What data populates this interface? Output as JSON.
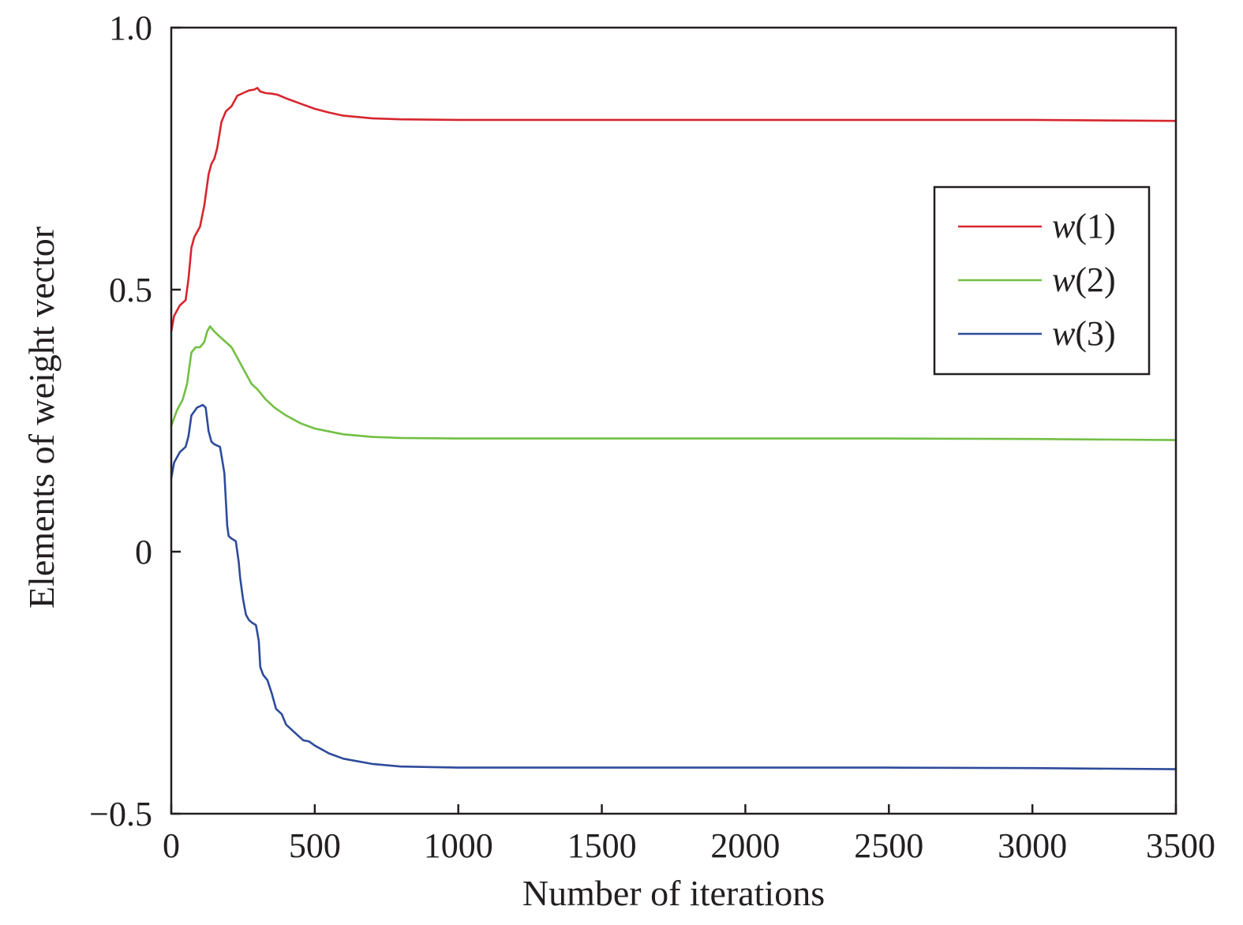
{
  "chart_data": {
    "type": "line",
    "title": "",
    "xlabel": "Number of iterations",
    "ylabel": "Elements of  weight vector",
    "xlim": [
      0,
      3500
    ],
    "ylim": [
      -0.5,
      1.0
    ],
    "x_ticks": [
      0,
      500,
      1000,
      1500,
      2000,
      2500,
      3000,
      3500
    ],
    "x_tick_labels": [
      "0",
      "500",
      "1000",
      "1500",
      "2000",
      "2500",
      "3000",
      "3500"
    ],
    "y_ticks": [
      -0.5,
      0,
      0.5,
      1.0
    ],
    "y_tick_labels": [
      "−0.5",
      "0",
      "0.5",
      "1.0"
    ],
    "grid": false,
    "legend_position": "top-right",
    "series": [
      {
        "name": "w(1)",
        "name_var": "w",
        "name_index": "(1)",
        "color": "#d7262e",
        "x": [
          0,
          10,
          30,
          50,
          60,
          70,
          80,
          100,
          115,
          130,
          140,
          150,
          160,
          175,
          190,
          210,
          230,
          250,
          270,
          290,
          300,
          310,
          330,
          350,
          370,
          400,
          450,
          500,
          550,
          600,
          700,
          800,
          1000,
          1500,
          2000,
          2500,
          3000,
          3500
        ],
        "y": [
          0.42,
          0.45,
          0.47,
          0.48,
          0.52,
          0.58,
          0.6,
          0.62,
          0.66,
          0.72,
          0.74,
          0.75,
          0.77,
          0.82,
          0.84,
          0.85,
          0.87,
          0.875,
          0.88,
          0.882,
          0.885,
          0.878,
          0.875,
          0.874,
          0.872,
          0.865,
          0.855,
          0.845,
          0.838,
          0.832,
          0.827,
          0.825,
          0.824,
          0.824,
          0.824,
          0.824,
          0.824,
          0.822
        ]
      },
      {
        "name": "w(2)",
        "name_var": "w",
        "name_index": "(2)",
        "color": "#72bf44",
        "x": [
          0,
          20,
          40,
          55,
          70,
          85,
          100,
          115,
          125,
          135,
          150,
          170,
          190,
          210,
          230,
          250,
          280,
          300,
          330,
          360,
          400,
          450,
          500,
          600,
          700,
          800,
          1000,
          1500,
          2000,
          2500,
          3000,
          3500
        ],
        "y": [
          0.24,
          0.27,
          0.29,
          0.32,
          0.38,
          0.39,
          0.39,
          0.4,
          0.42,
          0.43,
          0.42,
          0.41,
          0.4,
          0.39,
          0.37,
          0.35,
          0.32,
          0.31,
          0.29,
          0.275,
          0.26,
          0.245,
          0.235,
          0.224,
          0.219,
          0.217,
          0.216,
          0.216,
          0.216,
          0.216,
          0.215,
          0.213
        ]
      },
      {
        "name": "w(3)",
        "name_var": "w",
        "name_index": "(3)",
        "color": "#2e4b9b",
        "x": [
          0,
          10,
          30,
          50,
          60,
          70,
          90,
          110,
          120,
          130,
          140,
          150,
          170,
          185,
          195,
          200,
          210,
          225,
          235,
          240,
          250,
          260,
          270,
          280,
          295,
          305,
          310,
          320,
          335,
          350,
          365,
          385,
          400,
          420,
          440,
          460,
          480,
          500,
          550,
          600,
          700,
          800,
          1000,
          1500,
          2000,
          2500,
          3000,
          3500
        ],
        "y": [
          0.14,
          0.17,
          0.19,
          0.2,
          0.22,
          0.26,
          0.275,
          0.28,
          0.275,
          0.23,
          0.21,
          0.205,
          0.2,
          0.15,
          0.05,
          0.03,
          0.025,
          0.02,
          -0.02,
          -0.05,
          -0.09,
          -0.12,
          -0.13,
          -0.135,
          -0.14,
          -0.17,
          -0.22,
          -0.235,
          -0.245,
          -0.27,
          -0.3,
          -0.31,
          -0.33,
          -0.34,
          -0.35,
          -0.36,
          -0.362,
          -0.37,
          -0.385,
          -0.395,
          -0.405,
          -0.41,
          -0.412,
          -0.412,
          -0.412,
          -0.412,
          -0.413,
          -0.415
        ]
      }
    ]
  }
}
